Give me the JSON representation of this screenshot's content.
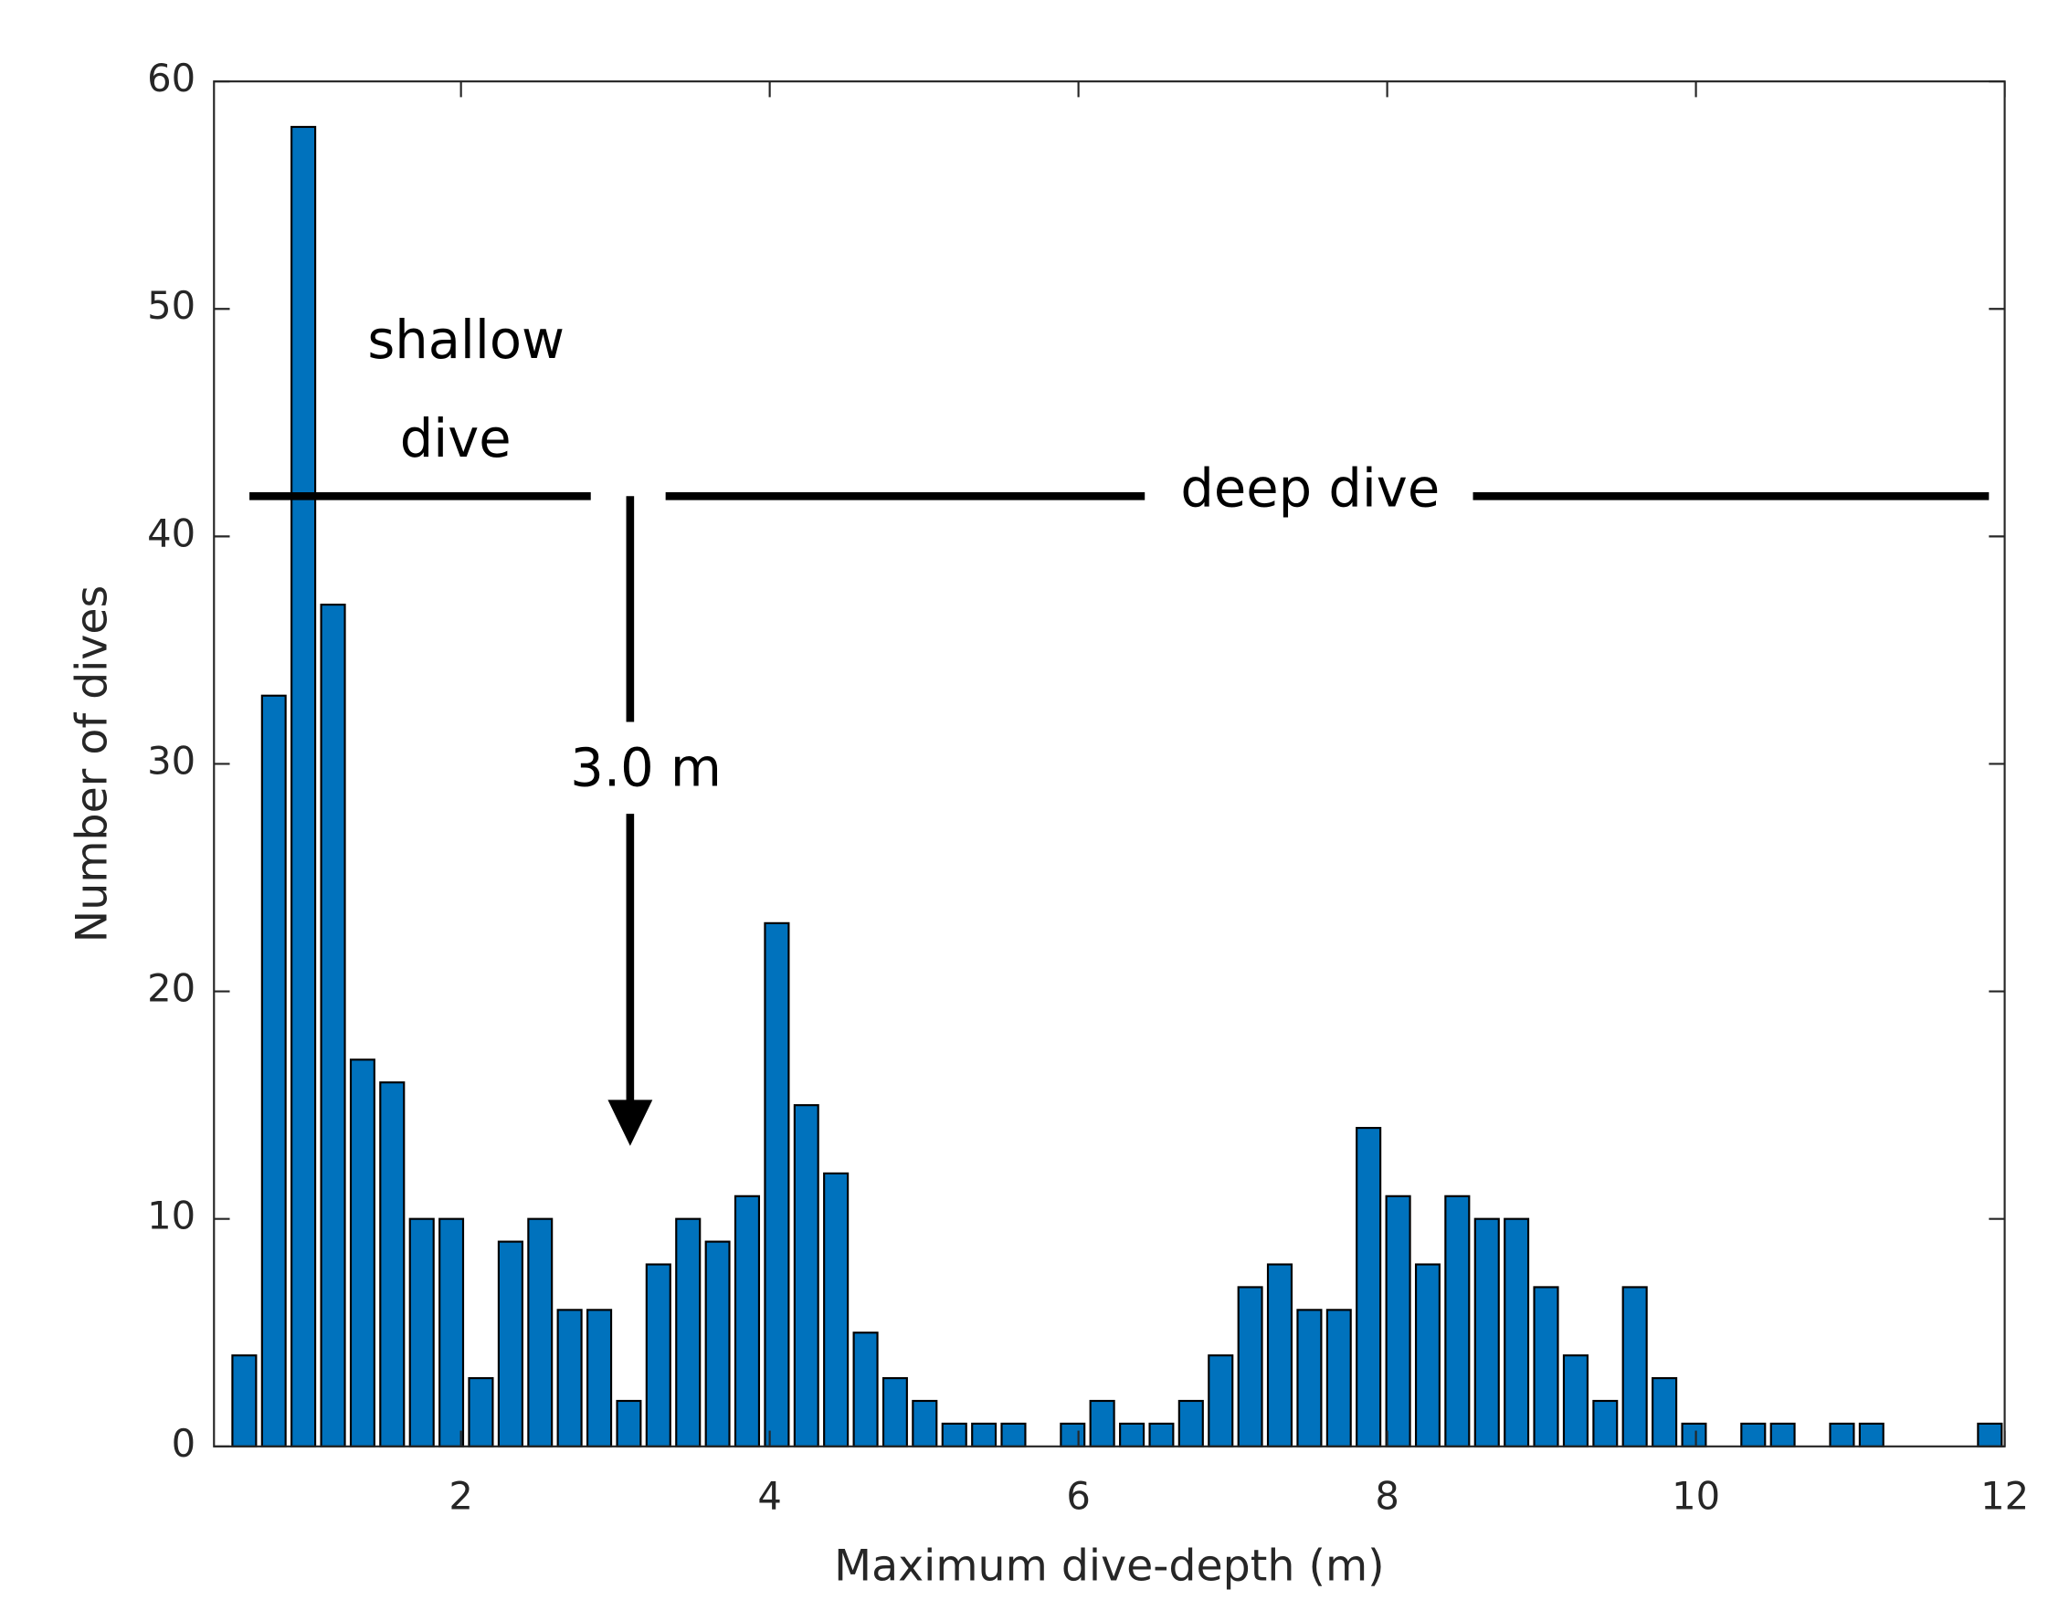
{
  "chart_data": {
    "type": "histogram",
    "xlabel": "Maximum dive-depth (m)",
    "ylabel": "Number of dives",
    "bins": [
      0.5,
      0.692,
      0.883,
      1.075,
      1.267,
      1.458,
      1.65,
      1.842,
      2.033,
      2.225,
      2.417,
      2.608,
      2.8,
      2.992,
      3.183,
      3.375,
      3.567,
      3.758,
      3.95,
      4.142,
      4.333,
      4.525,
      4.717,
      4.908,
      5.1,
      5.292,
      5.483,
      5.675,
      5.867,
      6.058,
      6.25,
      6.442,
      6.633,
      6.825,
      7.017,
      7.208,
      7.4,
      7.592,
      7.783,
      7.975,
      8.167,
      8.358,
      8.55,
      8.742,
      8.933,
      9.125,
      9.317,
      9.508,
      9.7,
      9.892,
      10.083,
      10.275,
      10.467,
      10.658,
      10.85,
      11.042,
      11.233,
      11.425,
      11.617,
      11.808,
      12
    ],
    "values": [
      4,
      33,
      58,
      37,
      17,
      16,
      10,
      10,
      3,
      9,
      10,
      6,
      6,
      2,
      8,
      10,
      9,
      11,
      23,
      15,
      12,
      5,
      3,
      2,
      1,
      1,
      1,
      0,
      1,
      2,
      1,
      1,
      2,
      4,
      7,
      8,
      6,
      6,
      14,
      11,
      8,
      11,
      10,
      10,
      7,
      4,
      2,
      7,
      3,
      1,
      0,
      1,
      1,
      0,
      1,
      1,
      0,
      0,
      0,
      1
    ],
    "color": "#0072bd",
    "xlim": [
      0.4,
      12
    ],
    "xticks": [
      2,
      4,
      6,
      8,
      10,
      12
    ],
    "ylim": [
      0,
      60
    ],
    "yticks": [
      0,
      10,
      20,
      30,
      40,
      50,
      60
    ],
    "annotations": [
      "shallow",
      "dive",
      "deep dive",
      "3.0 m"
    ]
  }
}
